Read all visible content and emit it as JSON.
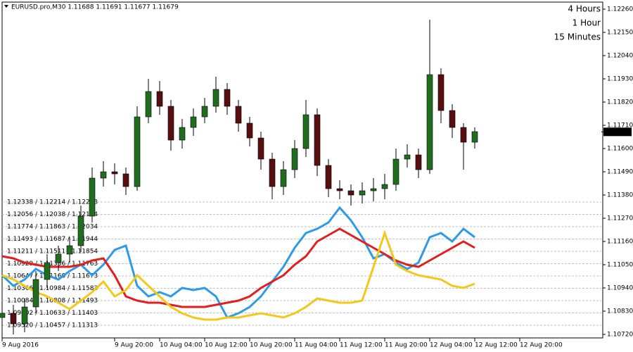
{
  "chart_data": {
    "type": "candlestick",
    "title": "EURUSD.pro,M30  1.11688 1.11691 1.11677 1.11679",
    "x": [
      0,
      2,
      4,
      6,
      8,
      10,
      12,
      14,
      16,
      18,
      20,
      22,
      24,
      26,
      28,
      30,
      32,
      34,
      36,
      38,
      40,
      42,
      44,
      46,
      48,
      50,
      52,
      54,
      56,
      58,
      60,
      62,
      64,
      66,
      68,
      70,
      72,
      74,
      76,
      78,
      80,
      82,
      84
    ],
    "open": [
      1.108,
      1.1082,
      1.1077,
      1.1085,
      1.1098,
      1.1106,
      1.111,
      1.1114,
      1.1128,
      1.1146,
      1.1149,
      1.1148,
      1.1142,
      1.1175,
      1.1187,
      1.118,
      1.1164,
      1.117,
      1.1175,
      1.118,
      1.1188,
      1.118,
      1.1172,
      1.1165,
      1.1155,
      1.1142,
      1.115,
      1.116,
      1.1176,
      1.1152,
      1.1141,
      1.114,
      1.1138,
      1.114,
      1.1141,
      1.1143,
      1.1155,
      1.1157,
      1.115,
      1.1195,
      1.1178,
      1.117,
      1.1163
    ],
    "high": [
      1.1087,
      1.1086,
      1.1089,
      1.1102,
      1.111,
      1.1114,
      1.1118,
      1.1133,
      1.1151,
      1.1154,
      1.1153,
      1.1151,
      1.118,
      1.1193,
      1.1192,
      1.1183,
      1.1174,
      1.1179,
      1.1184,
      1.1194,
      1.1191,
      1.1183,
      1.1175,
      1.1168,
      1.1158,
      1.1154,
      1.1164,
      1.1183,
      1.1179,
      1.1155,
      1.1145,
      1.1143,
      1.1144,
      1.1146,
      1.1148,
      1.116,
      1.1162,
      1.116,
      1.1221,
      1.1198,
      1.1181,
      1.1172,
      1.117
    ],
    "low": [
      1.1075,
      1.1072,
      1.1073,
      1.1082,
      1.1094,
      1.1102,
      1.1106,
      1.1111,
      1.1125,
      1.1142,
      1.1143,
      1.1138,
      1.114,
      1.1172,
      1.1176,
      1.1159,
      1.116,
      1.1166,
      1.1172,
      1.1177,
      1.1176,
      1.1168,
      1.1161,
      1.115,
      1.1136,
      1.1138,
      1.1146,
      1.1156,
      1.1147,
      1.1137,
      1.1136,
      1.1133,
      1.1134,
      1.1135,
      1.1136,
      1.114,
      1.1151,
      1.1146,
      1.1148,
      1.1172,
      1.1165,
      1.115,
      1.116
    ],
    "close": [
      1.1082,
      1.1077,
      1.1085,
      1.1098,
      1.1106,
      1.111,
      1.1114,
      1.1128,
      1.1146,
      1.1149,
      1.1148,
      1.1142,
      1.1175,
      1.1187,
      1.118,
      1.1164,
      1.117,
      1.1175,
      1.118,
      1.1188,
      1.118,
      1.1172,
      1.1165,
      1.1155,
      1.1142,
      1.115,
      1.116,
      1.1176,
      1.1152,
      1.1141,
      1.114,
      1.1138,
      1.114,
      1.1141,
      1.1143,
      1.1155,
      1.1157,
      1.115,
      1.1195,
      1.1178,
      1.117,
      1.1163,
      1.1168
    ],
    "bull_color": "#1e6e1e",
    "bear_color": "#5a0d0d",
    "series": [
      {
        "name": "4 Hours",
        "color": "#2f9ae6",
        "values": [
          1.11,
          1.1095,
          1.1098,
          1.1103,
          1.11,
          1.1098,
          1.1102,
          1.1105,
          1.11,
          1.1105,
          1.1112,
          1.1114,
          1.1095,
          1.109,
          1.1092,
          1.109,
          1.1094,
          1.1093,
          1.1094,
          1.109,
          1.108,
          1.1082,
          1.1085,
          1.109,
          1.1097,
          1.1104,
          1.1113,
          1.112,
          1.1122,
          1.1125,
          1.1132,
          1.1126,
          1.1118,
          1.1108,
          1.111,
          1.1106,
          1.1103,
          1.1106,
          1.1118,
          1.112,
          1.1116,
          1.1122,
          1.1118
        ]
      },
      {
        "name": "1 Hour",
        "color": "#e0201c",
        "values": [
          1.1109,
          1.1108,
          1.1106,
          1.1105,
          1.1104,
          1.1104,
          1.1104,
          1.1105,
          1.1107,
          1.1108,
          1.11,
          1.109,
          1.1088,
          1.1087,
          1.1087,
          1.1086,
          1.1085,
          1.1085,
          1.1085,
          1.1086,
          1.1087,
          1.1088,
          1.109,
          1.1094,
          1.1097,
          1.11,
          1.1105,
          1.1109,
          1.1116,
          1.1119,
          1.1122,
          1.1119,
          1.1116,
          1.1113,
          1.111,
          1.1107,
          1.1105,
          1.1104,
          1.1107,
          1.111,
          1.1113,
          1.1116,
          1.1113
        ]
      },
      {
        "name": "15 Minutes",
        "color": "#f2c81a",
        "values": [
          1.11,
          1.1098,
          1.1095,
          1.1092,
          1.109,
          1.1087,
          1.1084,
          1.1088,
          1.1092,
          1.1097,
          1.109,
          1.1093,
          1.11,
          1.1095,
          1.109,
          1.1085,
          1.1082,
          1.108,
          1.1079,
          1.1079,
          1.108,
          1.108,
          1.1081,
          1.1082,
          1.1081,
          1.108,
          1.1082,
          1.1085,
          1.1089,
          1.1088,
          1.1087,
          1.1087,
          1.1088,
          1.1104,
          1.112,
          1.1105,
          1.1102,
          1.11,
          1.1099,
          1.1098,
          1.1095,
          1.1094,
          1.1096
        ]
      }
    ],
    "levels": [
      "1.12338 / 1.12214 / 1.12213",
      "1.12056 / 1.12038 / 1.12124",
      "1.11774 / 1.11863 / 1.12034",
      "1.11493 / 1.11687 / 1.11944",
      "1.11211 / 1.11511 / 1.11854",
      "1.10929 / 1.11336 / 1.11763",
      "1.10647 / 1.11160 / 1.11673",
      "1.10366 / 1.10984 / 1.11583",
      "1.10084 / 1.10808 / 1.11493",
      "1.09802 / 1.10633 / 1.11403",
      "1.09520 / 1.10457 / 1.11313"
    ],
    "last_price": 1.11679,
    "xlim": [
      0,
      106.5
    ],
    "xticks": [
      {
        "value": 0,
        "label": "9 Aug 2016"
      },
      {
        "value": 20,
        "label": "9 Aug 20:00"
      },
      {
        "value": 28,
        "label": "10 Aug 04:00"
      },
      {
        "value": 36,
        "label": "10 Aug 12:00"
      },
      {
        "value": 44,
        "label": "10 Aug 20:00"
      },
      {
        "value": 52,
        "label": "11 Aug 04:00"
      },
      {
        "value": 60,
        "label": "11 Aug 12:00"
      },
      {
        "value": 68,
        "label": "11 Aug 20:00"
      },
      {
        "value": 76,
        "label": "12 Aug 04:00"
      },
      {
        "value": 84,
        "label": "12 Aug 12:00"
      },
      {
        "value": 92,
        "label": "12 Aug 20:00"
      }
    ],
    "ylim": [
      1.1072,
      1.1226
    ],
    "yticks": [
      {
        "value": 1.1226,
        "label": "1.12260"
      },
      {
        "value": 1.1215,
        "label": "1.12150"
      },
      {
        "value": 1.1204,
        "label": "1.12040"
      },
      {
        "value": 1.1193,
        "label": "1.11930"
      },
      {
        "value": 1.1182,
        "label": "1.11820"
      },
      {
        "value": 1.1171,
        "label": "1.11710"
      },
      {
        "value": 1.116,
        "label": "1.11600"
      },
      {
        "value": 1.1149,
        "label": "1.11490"
      },
      {
        "value": 1.1138,
        "label": "1.11380"
      },
      {
        "value": 1.1127,
        "label": "1.11270"
      },
      {
        "value": 1.1116,
        "label": "1.11160"
      },
      {
        "value": 1.1105,
        "label": "1.11050"
      },
      {
        "value": 1.1094,
        "label": "1.10940"
      },
      {
        "value": 1.1083,
        "label": "1.10830"
      },
      {
        "value": 1.1072,
        "label": "1.10720"
      }
    ]
  }
}
